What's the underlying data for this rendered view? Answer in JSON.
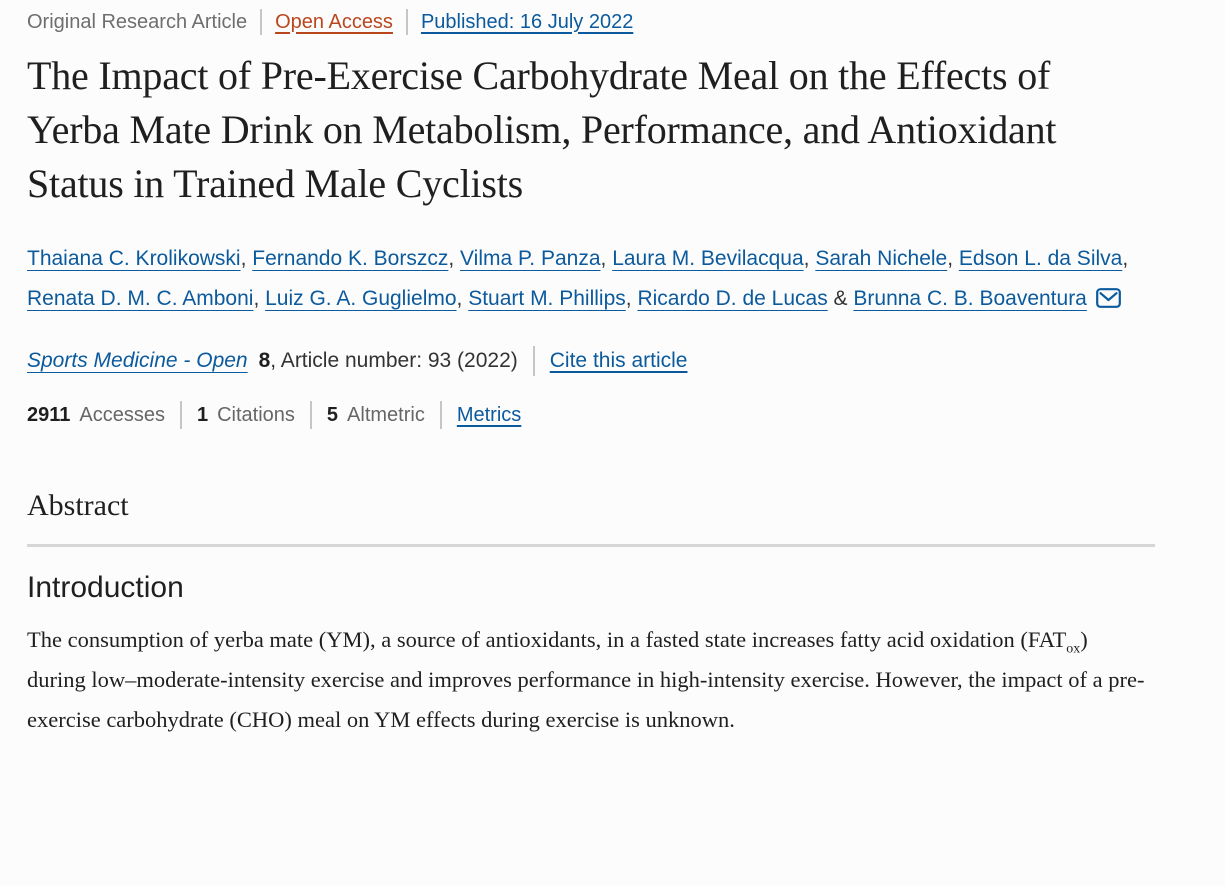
{
  "colors": {
    "link_blue": "#0b5a9d",
    "open_access_orange": "#b9461d",
    "heading_dark": "#1f1f1f",
    "meta_gray": "#6e6e6e",
    "label_gray": "#666666",
    "divider_gray": "#d6d6d6"
  },
  "meta_bar": {
    "article_type": "Original Research Article",
    "open_access": "Open Access",
    "published": "Published: 16 July 2022"
  },
  "title": "The Impact of Pre-Exercise Carbohydrate Meal on the Effects of Yerba Mate Drink on Metabolism, Performance, and Antioxidant Status in Trained Male Cyclists",
  "authors": {
    "names": [
      "Thaiana C. Krolikowski",
      "Fernando K. Borszcz",
      "Vilma P. Panza",
      "Laura M. Bevilacqua",
      "Sarah Nichele",
      "Edson L. da Silva",
      "Renata D. M. C. Amboni",
      "Luiz G. A. Guglielmo",
      "Stuart M. Phillips",
      "Ricardo D. de Lucas",
      "Brunna C. B. Boaventura"
    ],
    "separator": ", ",
    "last_separator": " & ",
    "corresponding_icon": "envelope-icon"
  },
  "journal_line": {
    "journal": "Sports Medicine - Open",
    "volume": "8",
    "article_info": ", Article number: 93 (2022)",
    "cite_link": "Cite this article"
  },
  "metrics_bar": {
    "items": [
      {
        "value": "2911",
        "label": "Accesses"
      },
      {
        "value": "1",
        "label": "Citations"
      },
      {
        "value": "5",
        "label": "Altmetric"
      }
    ],
    "metrics_link": "Metrics"
  },
  "abstract": {
    "heading": "Abstract",
    "introduction": {
      "heading": "Introduction",
      "text_before_sub": "The consumption of yerba mate (YM), a source of antioxidants, in a fasted state increases fatty acid oxidation (FAT",
      "subscript": "ox",
      "text_after_sub": ") during low–moderate-intensity exercise and improves performance in high-intensity exercise. However, the impact of a pre-exercise carbohydrate (CHO) meal on YM effects during exercise is unknown."
    }
  }
}
